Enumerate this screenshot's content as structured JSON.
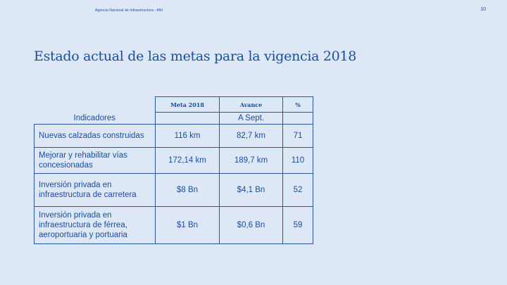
{
  "header": {
    "organization": "Agencia Nacional de Infraestructura - ANI",
    "page_number": "10"
  },
  "title": "Estado actual de las metas para la vigencia 2018",
  "table": {
    "col_headers": {
      "meta": "Meta 2018",
      "avance": "Avance",
      "pct": "%"
    },
    "indicadores_label": "Indicadores",
    "avance_sub": "A Sept.",
    "rows": [
      {
        "indicador": "Nuevas calzadas construidas",
        "meta": "116 km",
        "avance": "82,7 km",
        "pct": "71"
      },
      {
        "indicador": "Mejorar y rehabilitar vías concesionadas",
        "meta": "172,14 km",
        "avance": "189,7 km",
        "pct": "110"
      },
      {
        "indicador": "Inversión privada en infraestructura de carretera",
        "meta": "$8 Bn",
        "avance": "$4,1 Bn",
        "pct": "52"
      },
      {
        "indicador": "Inversión privada en infraestructura de férrea, aeroportuaria y portuaria",
        "meta": "$1 Bn",
        "avance": "$0,6 Bn",
        "pct": "59"
      }
    ]
  }
}
